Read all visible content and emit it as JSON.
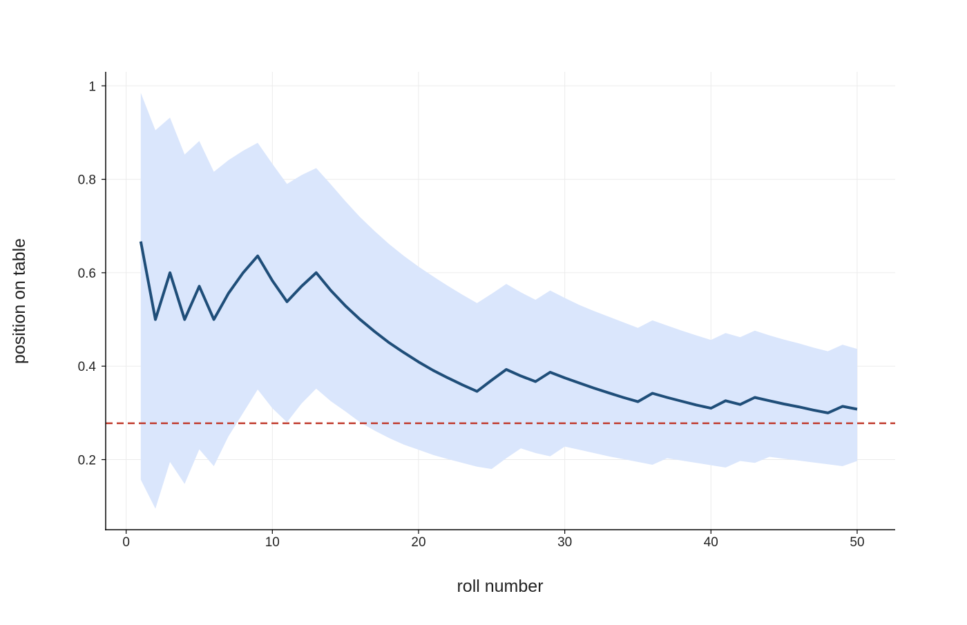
{
  "chart_data": {
    "type": "line",
    "title": "",
    "xlabel": "roll number",
    "ylabel": "position on table",
    "xlim": [
      -1.4,
      52.6
    ],
    "ylim": [
      0.05,
      1.03
    ],
    "x_ticks": [
      0,
      10,
      20,
      30,
      40,
      50
    ],
    "x_tick_labels": [
      "0",
      "10",
      "20",
      "30",
      "40",
      "50"
    ],
    "y_ticks": [
      0.2,
      0.4,
      0.6,
      0.8,
      1.0
    ],
    "y_tick_labels": [
      "0.2",
      "0.4",
      "0.6",
      "0.8",
      "1"
    ],
    "grid": true,
    "reference_line": {
      "y": 0.2778,
      "style": "dashed",
      "color": "#c0392b"
    },
    "series": [
      {
        "x": [
          1,
          2,
          3,
          4,
          5,
          6,
          7,
          8,
          9,
          10,
          11,
          12,
          13,
          14,
          15,
          16,
          17,
          18,
          19,
          20,
          21,
          22,
          23,
          24,
          25,
          26,
          27,
          28,
          29,
          30,
          31,
          32,
          33,
          34,
          35,
          36,
          37,
          38,
          39,
          40,
          41,
          42,
          43,
          44,
          45,
          46,
          47,
          48,
          49,
          50
        ],
        "y": [
          0.667,
          0.5,
          0.6,
          0.5,
          0.571,
          0.5,
          0.556,
          0.6,
          0.636,
          0.583,
          0.538,
          0.571,
          0.6,
          0.562,
          0.529,
          0.5,
          0.474,
          0.45,
          0.429,
          0.409,
          0.391,
          0.375,
          0.36,
          0.346,
          0.37,
          0.393,
          0.379,
          0.367,
          0.387,
          0.375,
          0.364,
          0.353,
          0.343,
          0.333,
          0.324,
          0.342,
          0.333,
          0.325,
          0.317,
          0.31,
          0.326,
          0.318,
          0.333,
          0.326,
          0.319,
          0.313,
          0.306,
          0.3,
          0.314,
          0.308
        ],
        "lower": [
          0.157,
          0.095,
          0.195,
          0.148,
          0.222,
          0.186,
          0.25,
          0.3,
          0.35,
          0.31,
          0.28,
          0.32,
          0.352,
          0.325,
          0.303,
          0.28,
          0.262,
          0.246,
          0.232,
          0.221,
          0.21,
          0.201,
          0.193,
          0.185,
          0.18,
          0.203,
          0.224,
          0.214,
          0.207,
          0.228,
          0.221,
          0.214,
          0.207,
          0.201,
          0.195,
          0.189,
          0.203,
          0.198,
          0.193,
          0.188,
          0.183,
          0.197,
          0.193,
          0.206,
          0.202,
          0.198,
          0.194,
          0.19,
          0.186,
          0.197
        ],
        "upper": [
          0.985,
          0.905,
          0.932,
          0.853,
          0.882,
          0.816,
          0.841,
          0.861,
          0.878,
          0.833,
          0.79,
          0.809,
          0.824,
          0.789,
          0.753,
          0.719,
          0.689,
          0.661,
          0.636,
          0.613,
          0.592,
          0.572,
          0.553,
          0.535,
          0.555,
          0.576,
          0.558,
          0.542,
          0.562,
          0.546,
          0.531,
          0.518,
          0.506,
          0.494,
          0.482,
          0.498,
          0.487,
          0.476,
          0.466,
          0.456,
          0.471,
          0.462,
          0.476,
          0.466,
          0.457,
          0.449,
          0.44,
          0.432,
          0.446,
          0.437
        ],
        "color": "#1f4e79",
        "band_color": "#dae6fc"
      }
    ]
  }
}
